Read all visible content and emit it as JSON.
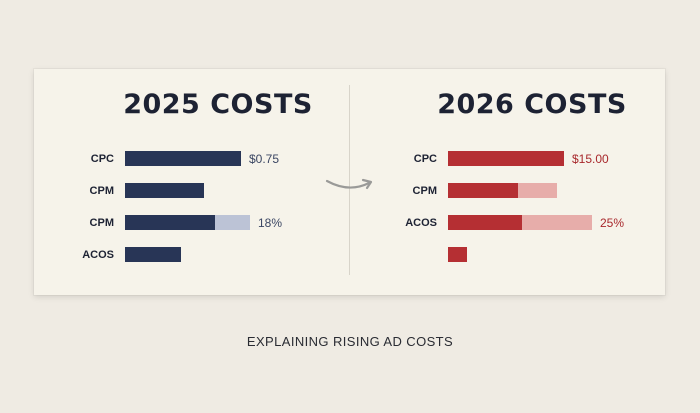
{
  "caption": "EXPLAINING RISING AD COSTS",
  "colors": {
    "navy": "#283556",
    "navy_light": "#bcc3d6",
    "red": "#b52f33",
    "red_light": "#e7adaa",
    "background": "#efebe3",
    "card": "#f6f3ea"
  },
  "icons": [
    "amazon-smile-arrow-icon"
  ],
  "chart_data": [
    {
      "type": "bar",
      "title": "2025 COSTS",
      "orientation": "horizontal",
      "categories": [
        "CPC",
        "CPM",
        "CPM",
        "ACOS"
      ],
      "series": [
        {
          "values": [
            0.5,
            0.34,
            0.39,
            0.24
          ]
        },
        {
          "values": [
            0,
            0,
            0.15,
            0
          ]
        }
      ],
      "value_labels": [
        "$0.75",
        "",
        "18%",
        ""
      ],
      "xlim": [
        0,
        1
      ],
      "grid": false
    },
    {
      "type": "bar",
      "title": "2026 COSTS",
      "orientation": "horizontal",
      "categories": [
        "CPC",
        "CPM",
        "ACOS",
        ""
      ],
      "series": [
        {
          "values": [
            0.5,
            0.3,
            0.32,
            0.08
          ]
        },
        {
          "values": [
            0,
            0.17,
            0.3,
            0
          ]
        }
      ],
      "value_labels": [
        "$15.00",
        "",
        "25%",
        ""
      ],
      "xlim": [
        0,
        1
      ],
      "grid": false
    }
  ]
}
